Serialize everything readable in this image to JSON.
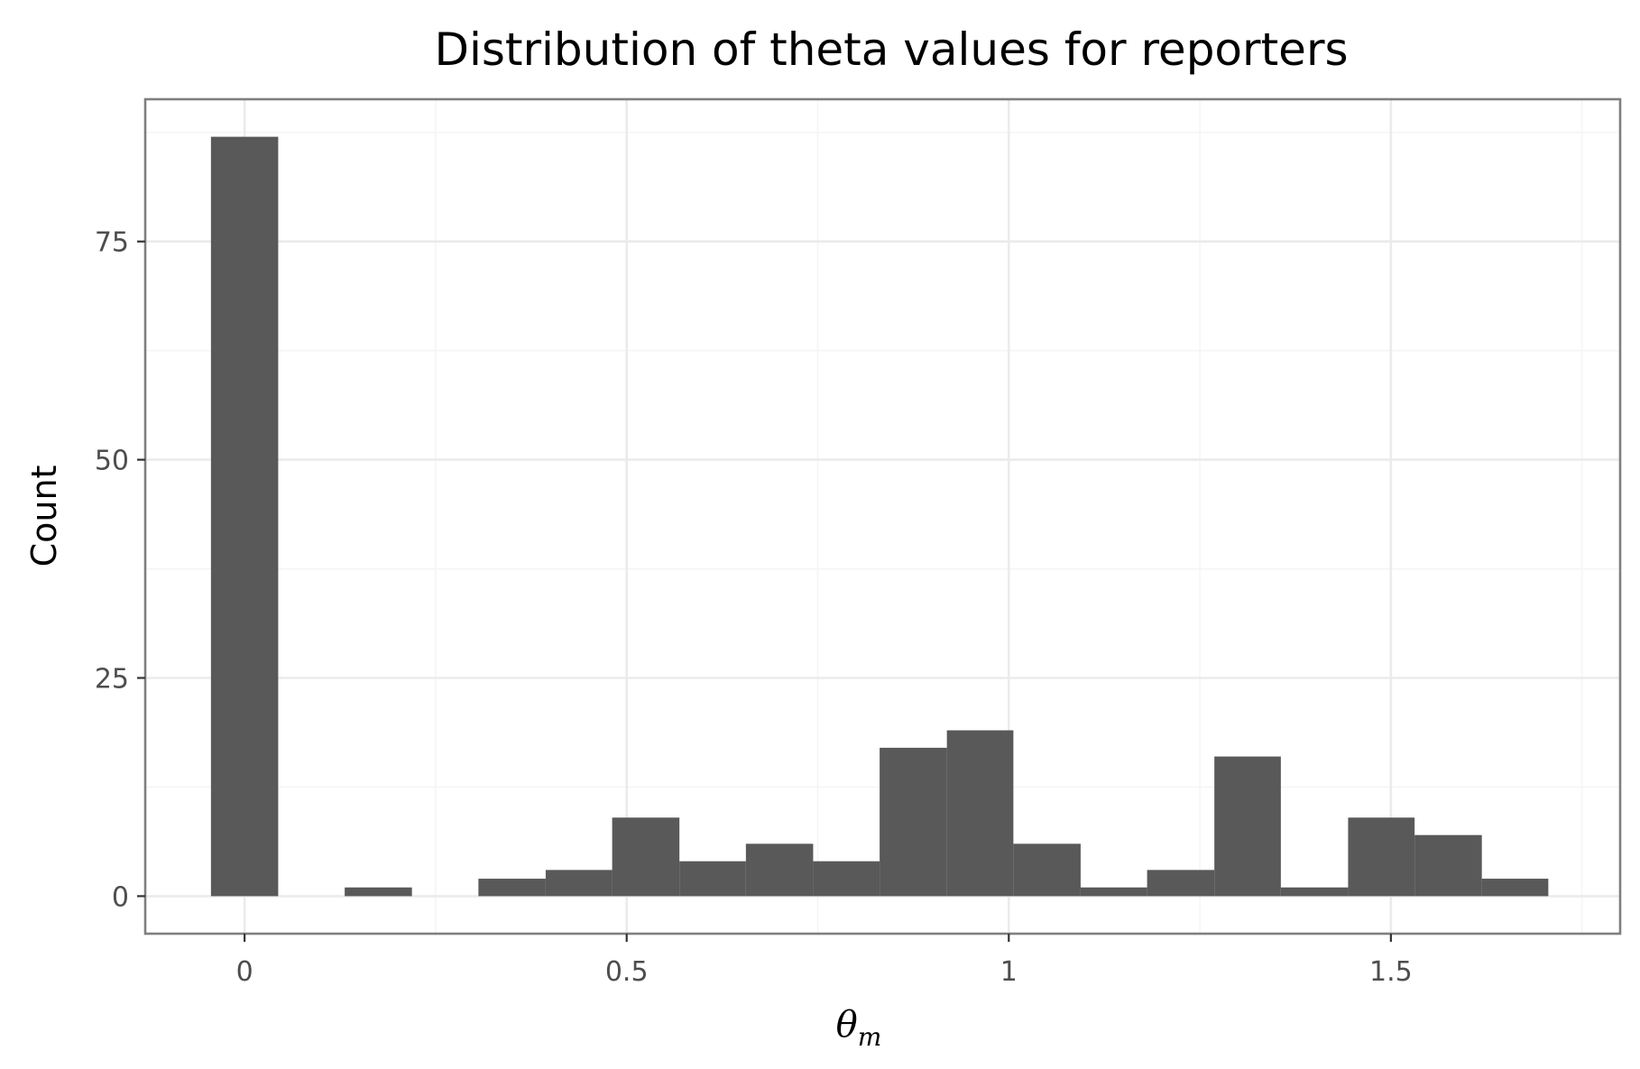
{
  "chart_data": {
    "type": "bar",
    "title": "Distribution of theta values for reporters",
    "xlabel": "θ",
    "xlabel_subscript": "m",
    "ylabel": "Count",
    "xlim": [
      -0.13,
      1.8
    ],
    "ylim": [
      -4.3,
      91.3
    ],
    "x_ticks": [
      {
        "value": 0,
        "label": "0"
      },
      {
        "value": 0.5,
        "label": "0.5"
      },
      {
        "value": 1,
        "label": "1"
      },
      {
        "value": 1.5,
        "label": "1.5"
      }
    ],
    "x_minor_ticks": [
      0.25,
      0.75,
      1.25,
      1.75
    ],
    "y_ticks": [
      {
        "value": 0,
        "label": "0"
      },
      {
        "value": 25,
        "label": "25"
      },
      {
        "value": 50,
        "label": "50"
      },
      {
        "value": 75,
        "label": "75"
      }
    ],
    "y_minor_ticks": [
      12.5,
      37.5,
      62.5,
      87.5
    ],
    "grid": true,
    "bins": [
      {
        "x0": -0.044,
        "x1": 0.044,
        "count": 87
      },
      {
        "x0": 0.131,
        "x1": 0.219,
        "count": 1
      },
      {
        "x0": 0.306,
        "x1": 0.394,
        "count": 2
      },
      {
        "x0": 0.394,
        "x1": 0.481,
        "count": 3
      },
      {
        "x0": 0.481,
        "x1": 0.569,
        "count": 9
      },
      {
        "x0": 0.569,
        "x1": 0.656,
        "count": 4
      },
      {
        "x0": 0.656,
        "x1": 0.744,
        "count": 6
      },
      {
        "x0": 0.744,
        "x1": 0.831,
        "count": 4
      },
      {
        "x0": 0.831,
        "x1": 0.919,
        "count": 17
      },
      {
        "x0": 0.919,
        "x1": 1.006,
        "count": 19
      },
      {
        "x0": 1.006,
        "x1": 1.094,
        "count": 6
      },
      {
        "x0": 1.094,
        "x1": 1.181,
        "count": 1
      },
      {
        "x0": 1.181,
        "x1": 1.269,
        "count": 3
      },
      {
        "x0": 1.269,
        "x1": 1.356,
        "count": 16
      },
      {
        "x0": 1.356,
        "x1": 1.444,
        "count": 1
      },
      {
        "x0": 1.444,
        "x1": 1.531,
        "count": 9
      },
      {
        "x0": 1.531,
        "x1": 1.619,
        "count": 7
      },
      {
        "x0": 1.619,
        "x1": 1.706,
        "count": 2
      }
    ],
    "bar_color": "#595959",
    "grid_color": "#ebebeb",
    "panel_border_color": "#7f7f7f"
  }
}
